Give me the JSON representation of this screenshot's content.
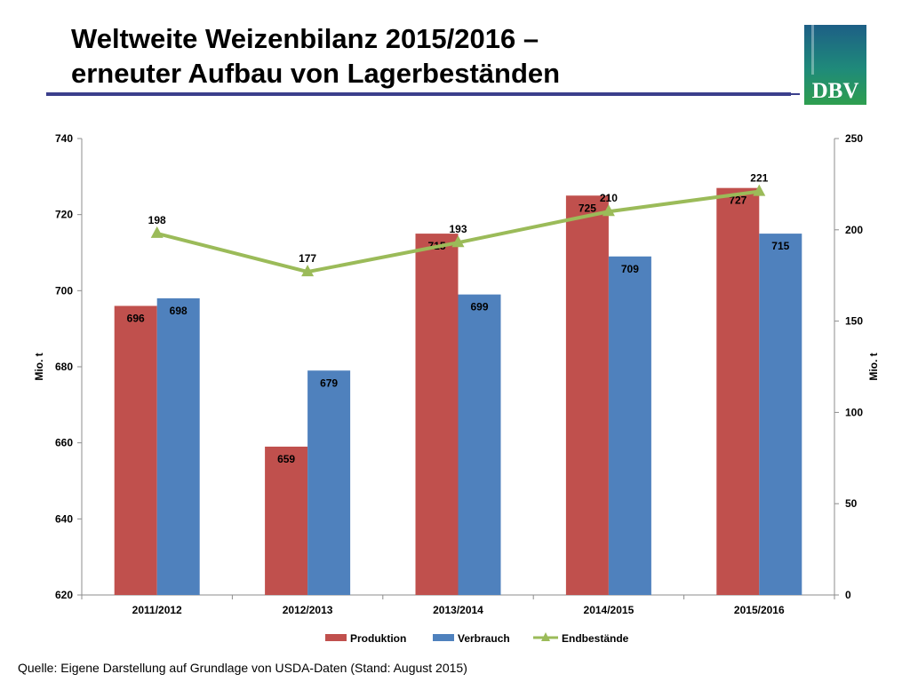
{
  "slide": {
    "title_line1": "Weltweite Weizenbilanz 2015/2016 –",
    "title_line2": "erneuter Aufbau von Lagerbeständen",
    "logo_text": "DBV",
    "source": "Quelle: Eigene Darstellung auf Grundlage von USDA-Daten (Stand: August 2015)"
  },
  "colors": {
    "produktion": "#c0504d",
    "verbrauch": "#4f81bd",
    "endbestaende": "#9bbb59",
    "title_rule": "#3b3f8c",
    "logo_green": "#2e8b57"
  },
  "chart_data": {
    "type": "bar",
    "categories": [
      "2011/2012",
      "2012/2013",
      "2013/2014",
      "2014/2015",
      "2015/2016"
    ],
    "series": [
      {
        "name": "Produktion",
        "type": "bar",
        "axis": "left",
        "values": [
          696,
          659,
          715,
          725,
          727
        ]
      },
      {
        "name": "Verbrauch",
        "type": "bar",
        "axis": "left",
        "values": [
          698,
          679,
          699,
          709,
          715
        ]
      },
      {
        "name": "Endbestände",
        "type": "line",
        "axis": "right",
        "marker": "triangle",
        "values": [
          198,
          177,
          193,
          210,
          221
        ]
      }
    ],
    "ylabel": "Mio. t",
    "ylabel_right": "Mio. t",
    "ylim": [
      620,
      740
    ],
    "yticks": [
      620,
      640,
      660,
      680,
      700,
      720,
      740
    ],
    "ylim_right": [
      0,
      250
    ],
    "yticks_right": [
      0,
      50,
      100,
      150,
      200,
      250
    ],
    "grid": false,
    "legend": "bottom"
  }
}
